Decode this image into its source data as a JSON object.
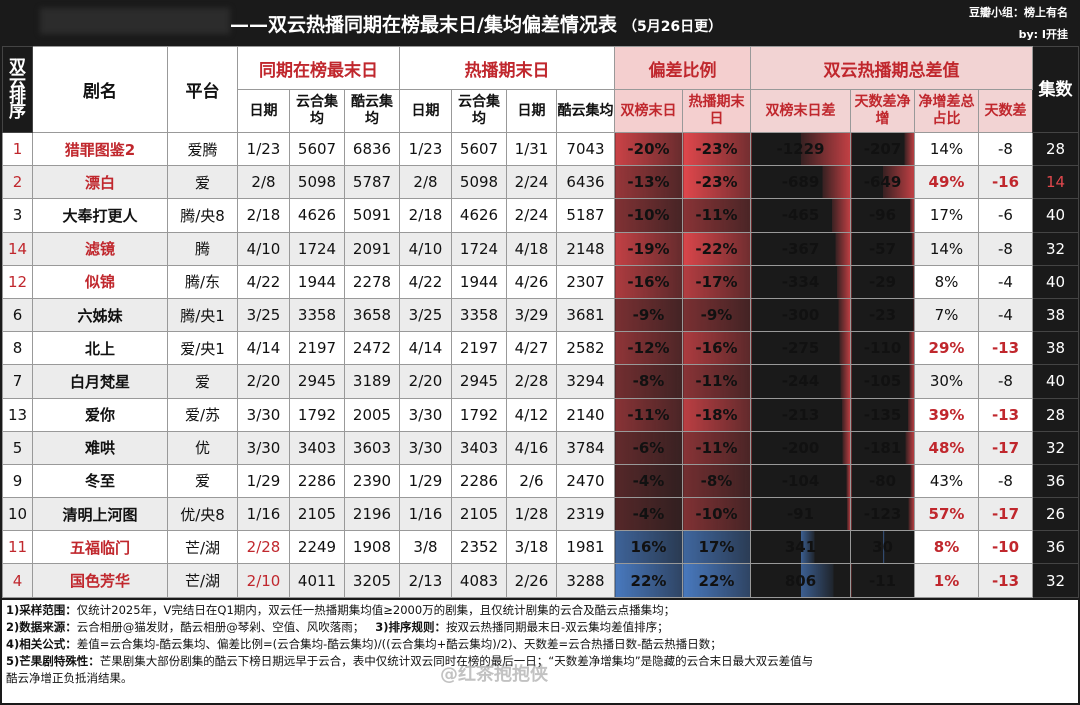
{
  "header": {
    "title": "——双云热播同期在榜最末日/集均偏差情况表",
    "subtitle": "（5月26日更）",
    "credit_line1": "豆瓣小组：榜上有名",
    "credit_line2": "by: I开挂"
  },
  "columns": {
    "rank": "双云排序",
    "name": "剧名",
    "platform": "平台",
    "group_same": "同期在榜最末日",
    "group_end": "热播期末日",
    "group_dev": "偏差比例",
    "group_total": "双云热播期总差值",
    "episodes": "集数",
    "date": "日期",
    "yun_avg": "云合集均",
    "ku_avg": "酷云集均",
    "dev_both": "双榜末日",
    "dev_hot": "热播期末日",
    "diff_both": "双榜末日差",
    "day_net": "天数差净增",
    "net_share": "净增差总占比",
    "day_diff": "天数差"
  },
  "rows": [
    {
      "rank": "1",
      "name": "猎罪图鉴2",
      "platform": "爱腾",
      "d1": "1/23",
      "y1": "5607",
      "k1": "6836",
      "d2": "1/23",
      "y2": "5607",
      "d3": "1/31",
      "k2": "7043",
      "p1": "-20%",
      "p2": "-23%",
      "t1": "-1229",
      "t2": "-207",
      "t3": "14%",
      "t4": "-8",
      "eps": "28"
    },
    {
      "rank": "2",
      "name": "漂白",
      "platform": "爱",
      "d1": "2/8",
      "y1": "5098",
      "k1": "5787",
      "d2": "2/8",
      "y2": "5098",
      "d3": "2/24",
      "k2": "6436",
      "p1": "-13%",
      "p2": "-23%",
      "t1": "-689",
      "t2": "-649",
      "t3": "49%",
      "t4": "-16",
      "eps": "14"
    },
    {
      "rank": "3",
      "name": "大奉打更人",
      "platform": "腾/央8",
      "d1": "2/18",
      "y1": "4626",
      "k1": "5091",
      "d2": "2/18",
      "y2": "4626",
      "d3": "2/24",
      "k2": "5187",
      "p1": "-10%",
      "p2": "-11%",
      "t1": "-465",
      "t2": "-96",
      "t3": "17%",
      "t4": "-6",
      "eps": "40"
    },
    {
      "rank": "14",
      "name": "滤镜",
      "platform": "腾",
      "d1": "4/10",
      "y1": "1724",
      "k1": "2091",
      "d2": "4/10",
      "y2": "1724",
      "d3": "4/18",
      "k2": "2148",
      "p1": "-19%",
      "p2": "-22%",
      "t1": "-367",
      "t2": "-57",
      "t3": "14%",
      "t4": "-8",
      "eps": "32"
    },
    {
      "rank": "12",
      "name": "似锦",
      "platform": "腾/东",
      "d1": "4/22",
      "y1": "1944",
      "k1": "2278",
      "d2": "4/22",
      "y2": "1944",
      "d3": "4/26",
      "k2": "2307",
      "p1": "-16%",
      "p2": "-17%",
      "t1": "-334",
      "t2": "-29",
      "t3": "8%",
      "t4": "-4",
      "eps": "40"
    },
    {
      "rank": "6",
      "name": "六姊妹",
      "platform": "腾/央1",
      "d1": "3/25",
      "y1": "3358",
      "k1": "3658",
      "d2": "3/25",
      "y2": "3358",
      "d3": "3/29",
      "k2": "3681",
      "p1": "-9%",
      "p2": "-9%",
      "t1": "-300",
      "t2": "-23",
      "t3": "7%",
      "t4": "-4",
      "eps": "38"
    },
    {
      "rank": "8",
      "name": "北上",
      "platform": "爱/央1",
      "d1": "4/14",
      "y1": "2197",
      "k1": "2472",
      "d2": "4/14",
      "y2": "2197",
      "d3": "4/27",
      "k2": "2582",
      "p1": "-12%",
      "p2": "-16%",
      "t1": "-275",
      "t2": "-110",
      "t3": "29%",
      "t4": "-13",
      "eps": "38"
    },
    {
      "rank": "7",
      "name": "白月梵星",
      "platform": "爱",
      "d1": "2/20",
      "y1": "2945",
      "k1": "3189",
      "d2": "2/20",
      "y2": "2945",
      "d3": "2/28",
      "k2": "3294",
      "p1": "-8%",
      "p2": "-11%",
      "t1": "-244",
      "t2": "-105",
      "t3": "30%",
      "t4": "-8",
      "eps": "40"
    },
    {
      "rank": "13",
      "name": "爱你",
      "platform": "爱/苏",
      "d1": "3/30",
      "y1": "1792",
      "k1": "2005",
      "d2": "3/30",
      "y2": "1792",
      "d3": "4/12",
      "k2": "2140",
      "p1": "-11%",
      "p2": "-18%",
      "t1": "-213",
      "t2": "-135",
      "t3": "39%",
      "t4": "-13",
      "eps": "28"
    },
    {
      "rank": "5",
      "name": "难哄",
      "platform": "优",
      "d1": "3/30",
      "y1": "3403",
      "k1": "3603",
      "d2": "3/30",
      "y2": "3403",
      "d3": "4/16",
      "k2": "3784",
      "p1": "-6%",
      "p2": "-11%",
      "t1": "-200",
      "t2": "-181",
      "t3": "48%",
      "t4": "-17",
      "eps": "32"
    },
    {
      "rank": "9",
      "name": "冬至",
      "platform": "爱",
      "d1": "1/29",
      "y1": "2286",
      "k1": "2390",
      "d2": "1/29",
      "y2": "2286",
      "d3": "2/6",
      "k2": "2470",
      "p1": "-4%",
      "p2": "-8%",
      "t1": "-104",
      "t2": "-80",
      "t3": "43%",
      "t4": "-8",
      "eps": "36"
    },
    {
      "rank": "10",
      "name": "清明上河图",
      "platform": "优/央8",
      "d1": "1/16",
      "y1": "2105",
      "k1": "2196",
      "d2": "1/16",
      "y2": "2105",
      "d3": "1/28",
      "k2": "2319",
      "p1": "-4%",
      "p2": "-10%",
      "t1": "-91",
      "t2": "-123",
      "t3": "57%",
      "t4": "-17",
      "eps": "26"
    },
    {
      "rank": "11",
      "name": "五福临门",
      "platform": "芒/湖",
      "d1": "2/28",
      "y1": "2249",
      "k1": "1908",
      "d2": "3/8",
      "y2": "2352",
      "d3": "3/18",
      "k2": "1981",
      "p1": "16%",
      "p2": "17%",
      "t1": "341",
      "t2": "30",
      "t3": "8%",
      "t4": "-10",
      "eps": "36"
    },
    {
      "rank": "4",
      "name": "国色芳华",
      "platform": "芒/湖",
      "d1": "2/10",
      "y1": "4011",
      "k1": "3205",
      "d2": "2/13",
      "y2": "4083",
      "d3": "2/26",
      "k2": "3288",
      "p1": "22%",
      "p2": "22%",
      "t1": "806",
      "t2": "-11",
      "t3": "1%",
      "t4": "-13",
      "eps": "32"
    }
  ],
  "colors": {
    "accent_red": "#c0272d",
    "neg_bar": "#e0474c",
    "pos_bar": "#4a7cc4",
    "header_dark": "#1a1a1a"
  },
  "notes": {
    "n1_label": "1)采样范围：",
    "n1": "仅统计2025年，V完结日在Q1期内，双云任一热播期集均值≥2000万的剧集，且仅统计剧集的云合及酷云点播集均；",
    "n2_label": "2)数据来源：",
    "n2": "云合相册@猫发财，酷云相册@琴剁、空值、风吹落雨；",
    "n3_label": "3)排序规则：",
    "n3": "按双云热播同期最末日-双云集均差值排序；",
    "n4_label": "4)相关公式：",
    "n4": "差值=云合集均-酷云集均、偏差比例=(云合集均-酷云集均)/((云合集均+酷云集均)/2)、天数差=云合热播日数-酷云热播日数；",
    "n5_label": "5)芒果剧特殊性：",
    "n5": "芒果剧集大部份剧集的酷云下榜日期远早于云合，表中仅统计双云同时在榜的最后一日；“天数差净增集均”是隐藏的云合末日最大双云差值与",
    "n5b": "酷云净增正负抵消结果。",
    "watermark": "@红茶抱抱侠"
  }
}
